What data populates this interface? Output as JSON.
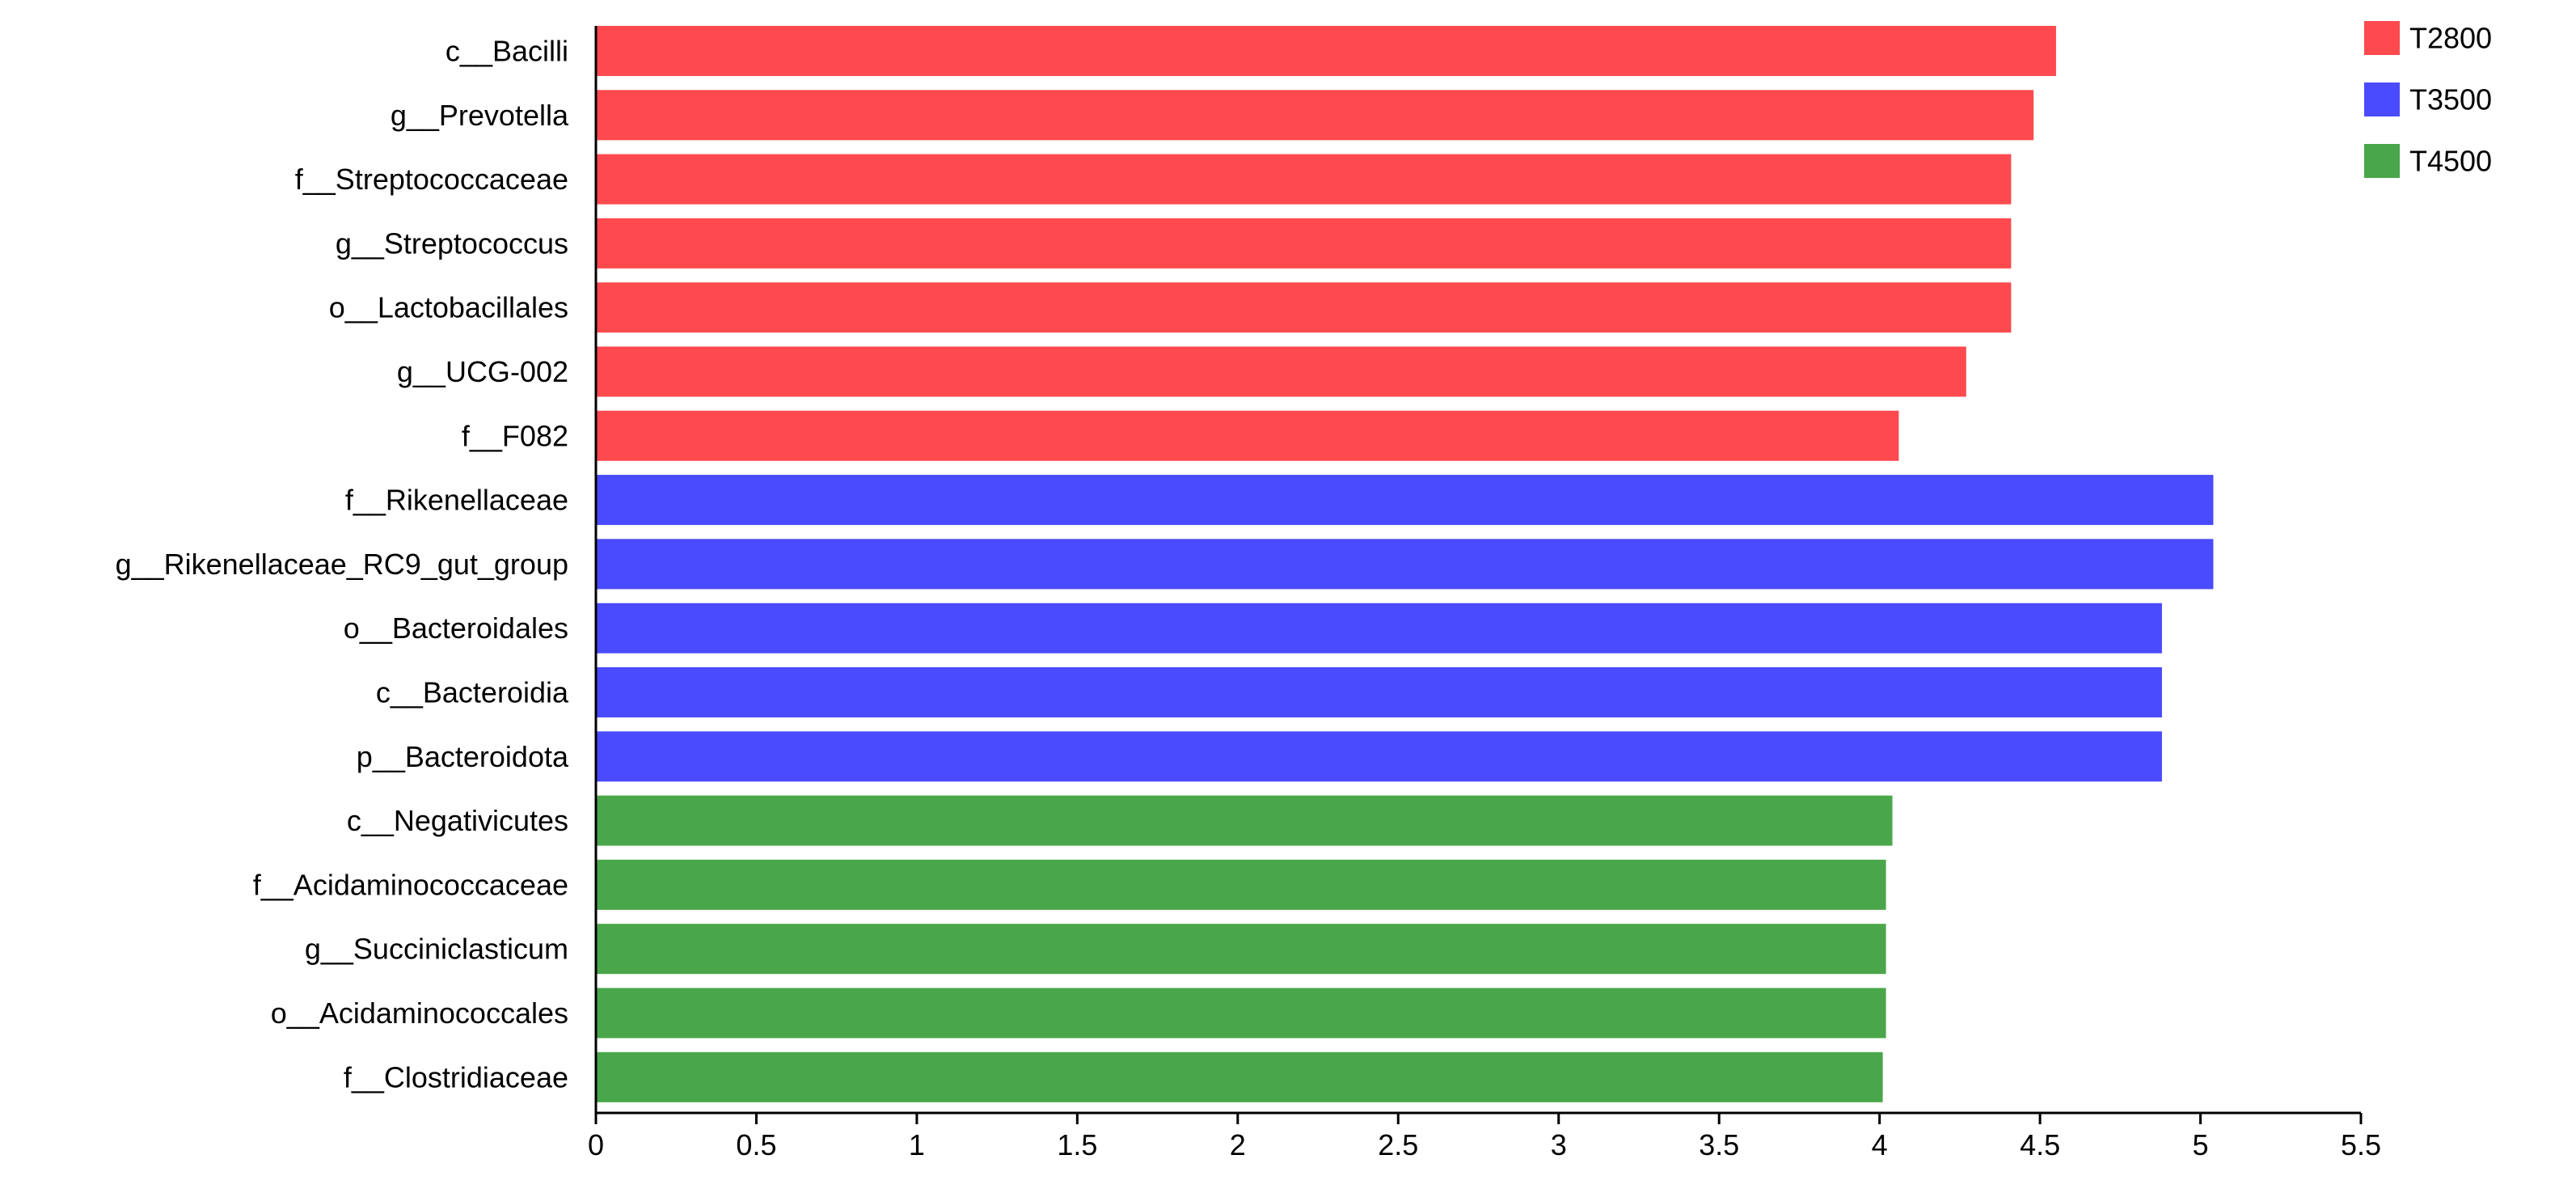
{
  "chart_data": {
    "type": "bar",
    "orientation": "horizontal",
    "categories": [
      "c__Bacilli",
      "g__Prevotella",
      "f__Streptococcaceae",
      "g__Streptococcus",
      "o__Lactobacillales",
      "g__UCG-002",
      "f__F082",
      "f__Rikenellaceae",
      "g__Rikenellaceae_RC9_gut_group",
      "o__Bacteroidales",
      "c__Bacteroidia",
      "p__Bacteroidota",
      "c__Negativicutes",
      "f__Acidaminococcaceae",
      "g__Succiniclasticum",
      "o__Acidaminococcales",
      "f__Clostridiaceae"
    ],
    "values": [
      4.55,
      4.48,
      4.41,
      4.41,
      4.41,
      4.27,
      4.06,
      5.04,
      5.04,
      4.88,
      4.88,
      4.88,
      4.04,
      4.02,
      4.02,
      4.02,
      4.01
    ],
    "groups": [
      "T2800",
      "T2800",
      "T2800",
      "T2800",
      "T2800",
      "T2800",
      "T2800",
      "T3500",
      "T3500",
      "T3500",
      "T3500",
      "T3500",
      "T4500",
      "T4500",
      "T4500",
      "T4500",
      "T4500"
    ],
    "legend": [
      {
        "name": "T2800",
        "color": "#fe4a4f"
      },
      {
        "name": "T3500",
        "color": "#4a4afe"
      },
      {
        "name": "T4500",
        "color": "#4aa64a"
      }
    ],
    "legend_position": "top-right",
    "xlim": [
      0,
      5.5
    ],
    "xticks": [
      "0",
      "0.5",
      "1",
      "1.5",
      "2",
      "2.5",
      "3",
      "3.5",
      "4",
      "4.5",
      "5",
      "5.5"
    ],
    "title": "",
    "xlabel": "",
    "ylabel": "",
    "grid": false
  }
}
